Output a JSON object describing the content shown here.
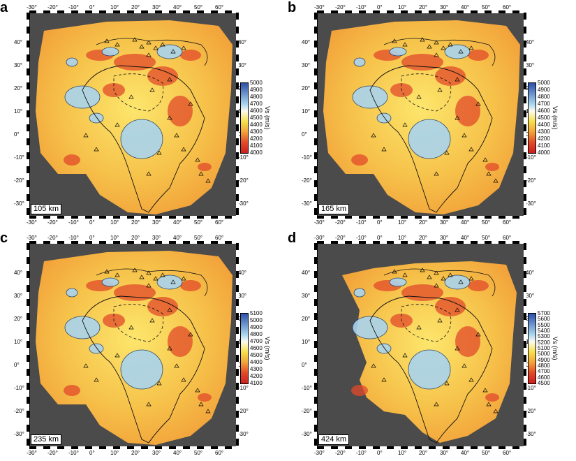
{
  "panels": [
    {
      "letter": "a",
      "depth": "105 km",
      "colorbar": {
        "title": "Vs (m/s)",
        "labels": [
          "5000",
          "4900",
          "4800",
          "4700",
          "4600",
          "4500",
          "4400",
          "4300",
          "4200",
          "4100",
          "4000"
        ]
      }
    },
    {
      "letter": "b",
      "depth": "165 km",
      "colorbar": {
        "title": "Vs (m/s)",
        "labels": [
          "5000",
          "4900",
          "4800",
          "4700",
          "4600",
          "4500",
          "4400",
          "4300",
          "4200",
          "4100",
          "4000"
        ]
      }
    },
    {
      "letter": "c",
      "depth": "235 km",
      "colorbar": {
        "title": "Vs (m/s)",
        "labels": [
          "5100",
          "5000",
          "4900",
          "4800",
          "4700",
          "4600",
          "4500",
          "4400",
          "4300",
          "4200",
          "4100"
        ]
      }
    },
    {
      "letter": "d",
      "depth": "424 km",
      "colorbar": {
        "title": "Vs (m/s)",
        "labels": [
          "5700",
          "5600",
          "5500",
          "5400",
          "5300",
          "5200",
          "5100",
          "5000",
          "4900",
          "4800",
          "4700",
          "4600",
          "4500"
        ]
      }
    }
  ],
  "axes": {
    "lon_labels": [
      "-30°",
      "-20°",
      "-10°",
      "0°",
      "10°",
      "20°",
      "30°",
      "40°",
      "50°",
      "60°"
    ],
    "lat_labels": [
      "40°",
      "30°",
      "20°",
      "10°",
      "0°",
      "-10°",
      "-20°",
      "-30°"
    ]
  },
  "colors": {
    "background": "#4b4b4b",
    "fast": "#2b4fa8",
    "slow": "#cc1f1f",
    "mid": "#f7e04b"
  }
}
